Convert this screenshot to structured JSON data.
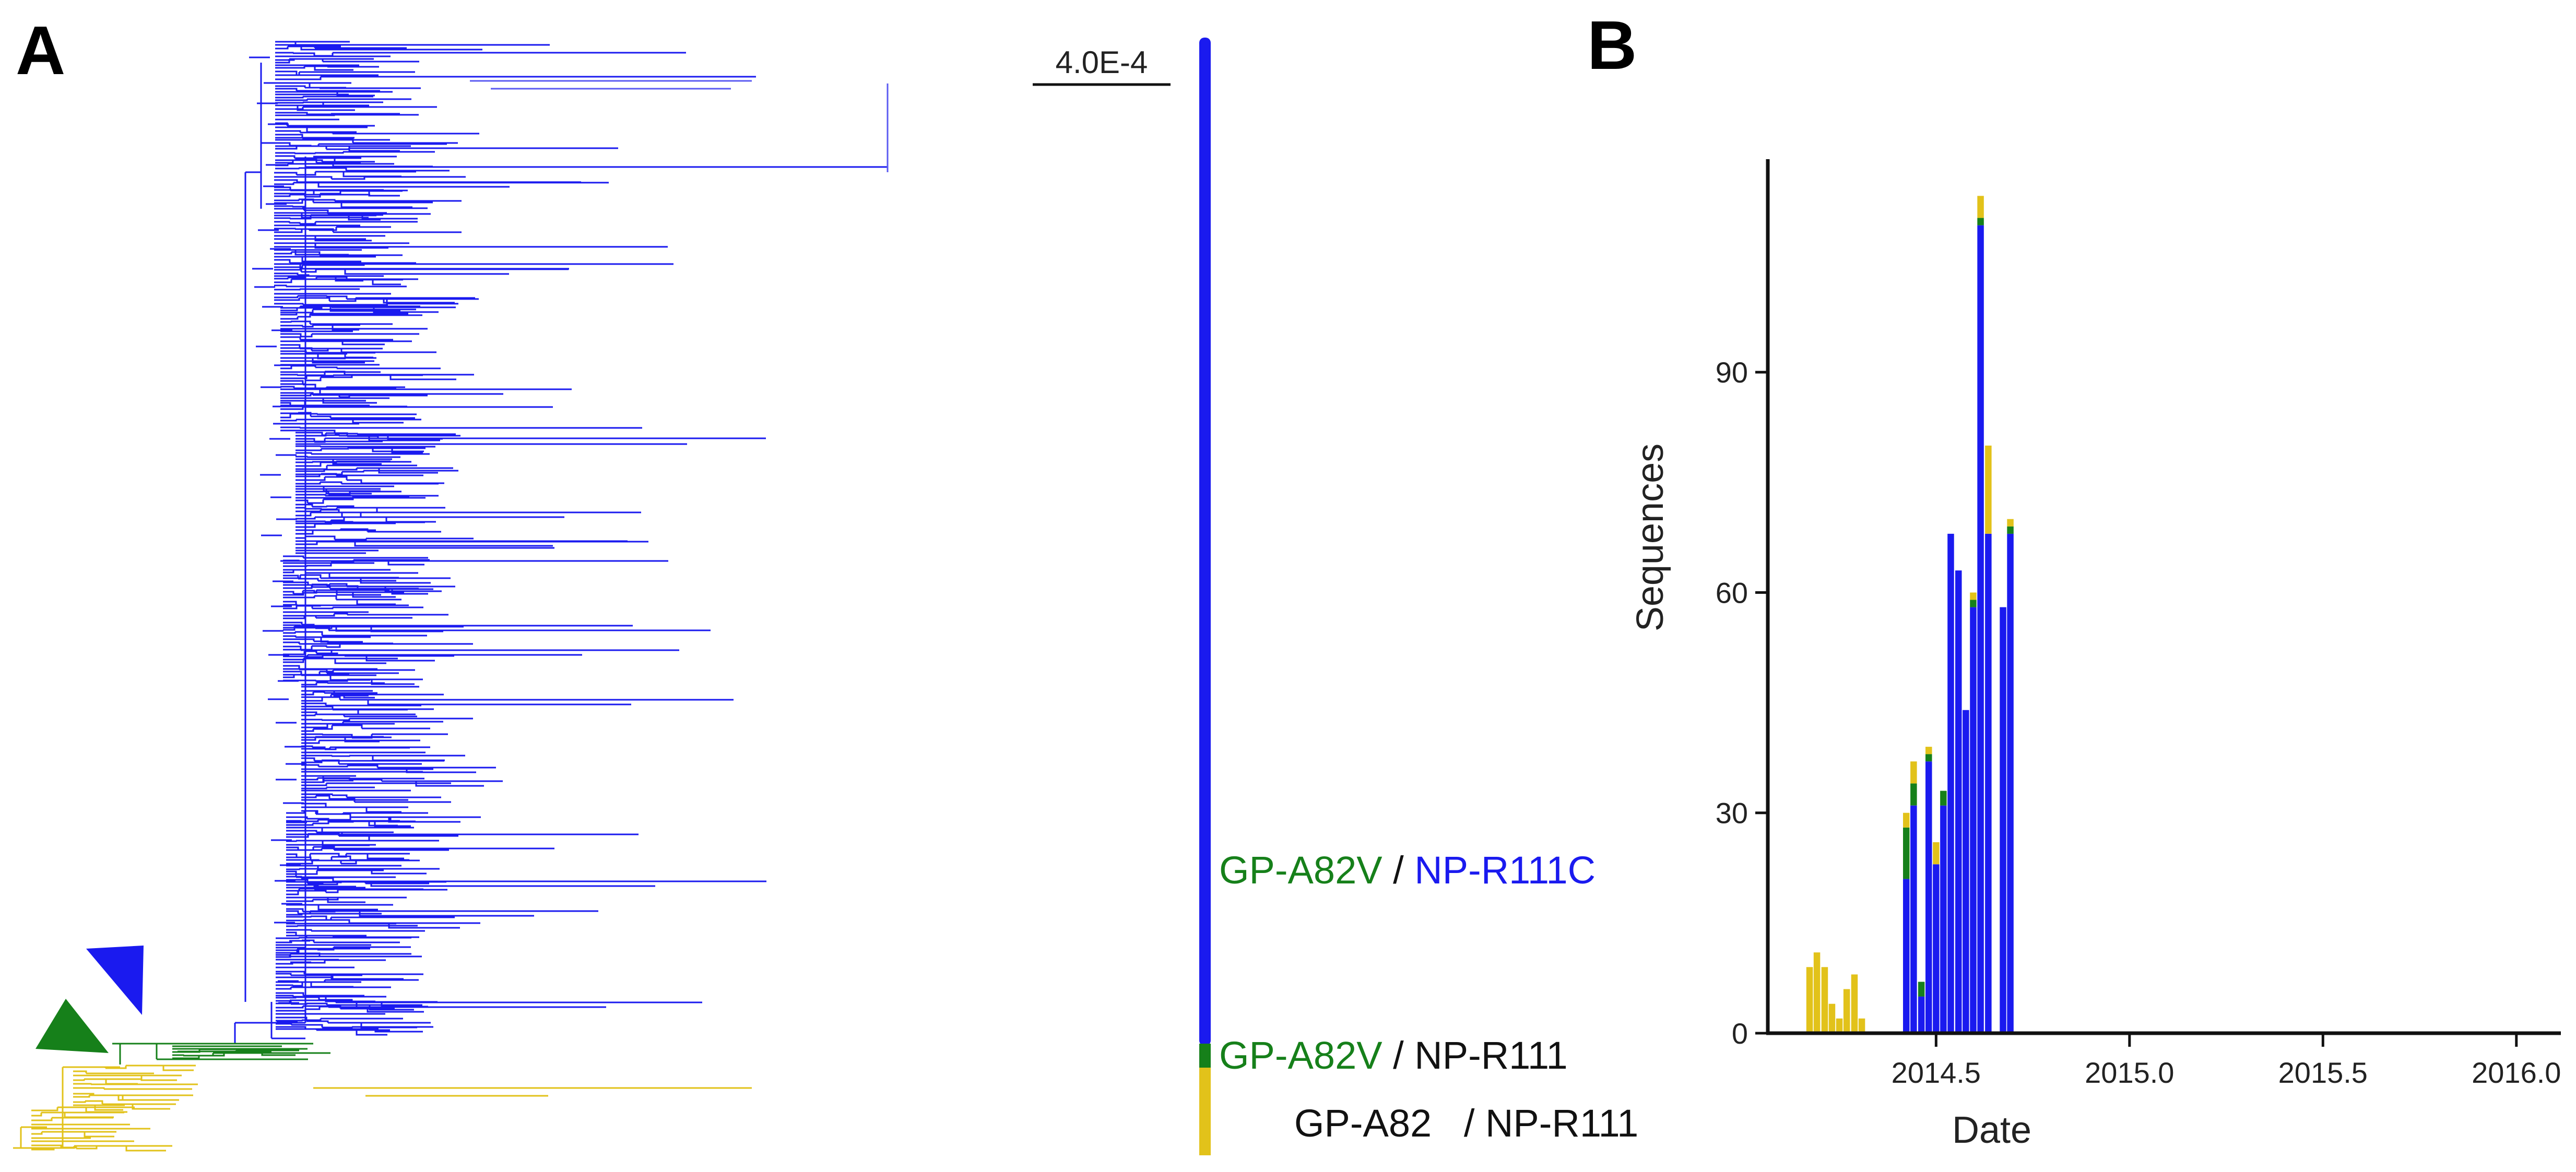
{
  "panels": {
    "a": "A",
    "b": "B"
  },
  "colors": {
    "gp_a82v_np_r111c": "#1a1aef",
    "gp_a82v_np_r111": "#16801a",
    "gp_a82_np_r111": "#e2c21a",
    "text_black": "#111111"
  },
  "tree": {
    "scale_bar": "4.0E-4",
    "legend": [
      {
        "part1": "GP-A82V",
        "part1_color": "#16801a",
        "sep": " / ",
        "part2": "NP-R111C",
        "part2_color": "#1a1aef"
      },
      {
        "part1": "GP-A82V",
        "part1_color": "#16801a",
        "sep": " / ",
        "part2": "NP-R111",
        "part2_color": "#111111"
      },
      {
        "part1": "GP-A82",
        "part1_color": "#111111",
        "sep": "   / ",
        "part2": "NP-R111",
        "part2_color": "#111111"
      }
    ],
    "markers": [
      {
        "name": "blue-arrowhead-icon",
        "color": "#1a1aef"
      },
      {
        "name": "green-arrowhead-icon",
        "color": "#16801a"
      }
    ]
  },
  "chart_data": {
    "type": "bar",
    "stacked": true,
    "xlabel": "Date",
    "ylabel": "Sequences",
    "xlim": [
      2014.065,
      2016.115
    ],
    "ylim": [
      0,
      119
    ],
    "xticks": [
      2014.5,
      2015.0,
      2015.5,
      2016.0
    ],
    "xtick_labels": [
      "2014.5",
      "2015.0",
      "2015.5",
      "2016.0"
    ],
    "yticks": [
      0,
      30,
      60,
      90
    ],
    "ytick_labels": [
      "0",
      "30",
      "60",
      "90"
    ],
    "bin_width": 0.0192,
    "x": [
      2014.173,
      2014.192,
      2014.212,
      2014.231,
      2014.25,
      2014.269,
      2014.289,
      2014.308,
      2014.327,
      2014.346,
      2014.365,
      2014.385,
      2014.404,
      2014.423,
      2014.442,
      2014.462,
      2014.481,
      2014.5,
      2014.519,
      2014.538,
      2014.558,
      2014.577,
      2014.596,
      2014.615,
      2014.635,
      2014.654,
      2014.673,
      2014.692,
      2014.712,
      2014.731,
      2014.75,
      2014.769,
      2014.788,
      2014.808,
      2014.827,
      2014.846,
      2014.865,
      2014.885,
      2014.904,
      2014.923,
      2014.942,
      2014.962,
      2014.981,
      2015.0,
      2015.019,
      2015.038,
      2015.058,
      2015.077,
      2015.096,
      2015.115,
      2015.135,
      2015.154,
      2015.173,
      2015.192,
      2015.212,
      2015.231,
      2015.25,
      2015.269,
      2015.288,
      2015.308,
      2015.327,
      2015.346,
      2015.365,
      2015.385,
      2015.404,
      2015.423,
      2015.442,
      2015.462,
      2015.481,
      2015.5,
      2015.519,
      2015.538,
      2015.558,
      2015.577,
      2015.596,
      2015.615,
      2015.635,
      2015.654,
      2015.673,
      2015.692,
      2015.712,
      2015.731,
      2015.75,
      2015.769,
      2015.788,
      2015.808,
      2015.827,
      2015.846,
      2015.865,
      2015.885,
      2015.904,
      2015.923,
      2015.942,
      2015.962,
      2015.981,
      2016.0,
      2016.019,
      2016.038,
      2016.058
    ],
    "series": [
      {
        "name": "GP-A82V / NP-R111C",
        "color": "#1a1aef",
        "values": [
          0,
          0,
          0,
          0,
          0,
          0,
          0,
          0,
          0,
          0,
          0,
          0,
          0,
          21,
          31,
          5,
          37,
          23,
          31,
          68,
          63,
          44,
          58,
          110,
          68,
          0,
          58,
          68,
          0,
          0,
          0,
          0,
          0,
          0,
          0,
          0,
          0,
          0,
          0,
          0,
          0,
          0,
          0,
          0,
          0,
          0,
          0,
          0,
          0,
          0,
          0,
          0,
          0,
          0,
          0,
          0,
          0,
          0,
          0,
          0,
          0,
          0,
          0,
          0,
          0,
          0,
          0,
          0,
          0,
          0,
          0,
          0,
          0,
          0,
          0,
          0,
          0,
          0,
          0,
          0,
          0,
          0,
          0,
          0,
          0,
          0,
          0,
          0,
          0,
          0,
          0,
          0,
          0,
          0,
          0,
          0,
          0,
          0,
          0
        ]
      },
      {
        "name": "GP-A82V / NP-R111",
        "color": "#16801a",
        "values": [
          0,
          0,
          0,
          0,
          0,
          0,
          0,
          0,
          0,
          0,
          0,
          0,
          0,
          7,
          3,
          2,
          1,
          0,
          2,
          0,
          0,
          0,
          1,
          1,
          0,
          0,
          0,
          1,
          0,
          0,
          0,
          0,
          0,
          0,
          0,
          0,
          0,
          0,
          0,
          0,
          0,
          0,
          0,
          0,
          0,
          0,
          0,
          0,
          0,
          0,
          0,
          0,
          0,
          0,
          0,
          0,
          0,
          0,
          0,
          0,
          0,
          0,
          0,
          0,
          0,
          0,
          0,
          0,
          0,
          0,
          0,
          0,
          0,
          0,
          0,
          0,
          0,
          0,
          0,
          0,
          0,
          0,
          0,
          0,
          0,
          0,
          0,
          0,
          0,
          0,
          0,
          0,
          0,
          0,
          0,
          0,
          0,
          0,
          0
        ]
      },
      {
        "name": "GP-A82 / NP-R111",
        "color": "#e2c21a",
        "values": [
          9,
          11,
          9,
          4,
          2,
          6,
          8,
          2,
          0,
          0,
          0,
          0,
          0,
          2,
          3,
          0,
          1,
          3,
          0,
          0,
          0,
          0,
          1,
          3,
          12,
          0,
          0,
          1,
          0,
          0,
          0,
          0,
          0,
          0,
          0,
          0,
          0,
          0,
          0,
          0,
          0,
          0,
          0,
          0,
          0,
          0,
          0,
          0,
          0,
          0,
          0,
          0,
          0,
          0,
          0,
          0,
          0,
          0,
          0,
          0,
          0,
          0,
          0,
          0,
          0,
          0,
          0,
          0,
          0,
          0,
          0,
          0,
          0,
          0,
          0,
          0,
          0,
          0,
          0,
          0,
          0,
          0,
          0,
          0,
          0,
          0,
          0,
          0,
          0,
          0,
          0,
          0,
          0,
          0,
          0,
          0,
          0,
          0,
          0
        ]
      }
    ]
  }
}
